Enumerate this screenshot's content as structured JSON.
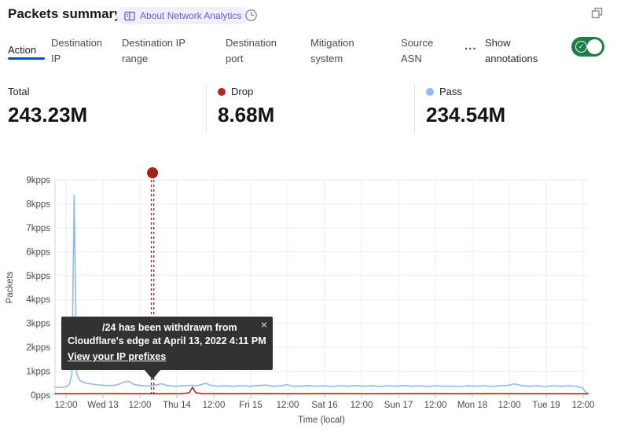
{
  "header": {
    "title": "Packets summary",
    "about_badge": "About Network Analytics"
  },
  "icons": {
    "close": "×",
    "check": "✓",
    "more": "..."
  },
  "tabs": {
    "items": [
      {
        "label": "Action",
        "active": true
      },
      {
        "label": "Destination IP",
        "active": false
      },
      {
        "label": "Destination IP range",
        "active": false
      },
      {
        "label": "Destination port",
        "active": false
      },
      {
        "label": "Mitigation system",
        "active": false
      },
      {
        "label": "Source ASN",
        "active": false
      }
    ],
    "annotations_label": "Show annotations",
    "toggle_on": true,
    "toggle_color": "#1e7d45"
  },
  "stats": [
    {
      "label": "Total",
      "value": "243.23M",
      "color": null
    },
    {
      "label": "Drop",
      "value": "8.68M",
      "color": "#b3261c"
    },
    {
      "label": "Pass",
      "value": "234.54M",
      "color": "#92b9f0"
    }
  ],
  "tooltip": {
    "message": "/24 has been withdrawn from Cloudflare's edge at April 13, 2022 4:11 PM",
    "link": "View your IP prefixes"
  },
  "chart_data": {
    "type": "line",
    "xlabel": "Time (local)",
    "ylabel": "Packets",
    "unit": "kpps",
    "ylim": [
      0,
      9
    ],
    "grid": true,
    "y_ticks": [
      "0pps",
      "1kpps",
      "2kpps",
      "3kpps",
      "4kpps",
      "5kpps",
      "6kpps",
      "7kpps",
      "8kpps",
      "9kpps"
    ],
    "x_ticks": [
      "12:00",
      "Wed 13",
      "12:00",
      "Thu 14",
      "12:00",
      "Fri 15",
      "12:00",
      "Sat 16",
      "12:00",
      "Sun 17",
      "12:00",
      "Mon 18",
      "12:00",
      "Tue 19",
      "12:00"
    ],
    "series": [
      {
        "name": "Pass",
        "color": "#92b9f0",
        "points": [
          [
            0,
            0.32
          ],
          [
            0.01,
            0.33
          ],
          [
            0.02,
            0.34
          ],
          [
            0.027,
            0.45
          ],
          [
            0.0315,
            0.9
          ],
          [
            0.036,
            8.38
          ],
          [
            0.0405,
            0.9
          ],
          [
            0.046,
            0.62
          ],
          [
            0.055,
            0.52
          ],
          [
            0.07,
            0.46
          ],
          [
            0.085,
            0.42
          ],
          [
            0.1,
            0.4
          ],
          [
            0.115,
            0.42
          ],
          [
            0.13,
            0.55
          ],
          [
            0.138,
            0.58
          ],
          [
            0.148,
            0.45
          ],
          [
            0.16,
            0.4
          ],
          [
            0.175,
            0.38
          ],
          [
            0.19,
            0.42
          ],
          [
            0.2,
            0.48
          ],
          [
            0.21,
            0.4
          ],
          [
            0.225,
            0.37
          ],
          [
            0.24,
            0.39
          ],
          [
            0.255,
            0.41
          ],
          [
            0.268,
            0.4
          ],
          [
            0.283,
            0.5
          ],
          [
            0.292,
            0.41
          ],
          [
            0.305,
            0.37
          ],
          [
            0.32,
            0.39
          ],
          [
            0.335,
            0.37
          ],
          [
            0.35,
            0.4
          ],
          [
            0.365,
            0.37
          ],
          [
            0.38,
            0.4
          ],
          [
            0.395,
            0.42
          ],
          [
            0.41,
            0.37
          ],
          [
            0.425,
            0.39
          ],
          [
            0.435,
            0.44
          ],
          [
            0.445,
            0.38
          ],
          [
            0.46,
            0.37
          ],
          [
            0.475,
            0.4
          ],
          [
            0.49,
            0.37
          ],
          [
            0.505,
            0.39
          ],
          [
            0.52,
            0.36
          ],
          [
            0.535,
            0.39
          ],
          [
            0.55,
            0.37
          ],
          [
            0.565,
            0.4
          ],
          [
            0.58,
            0.37
          ],
          [
            0.595,
            0.39
          ],
          [
            0.61,
            0.36
          ],
          [
            0.625,
            0.39
          ],
          [
            0.64,
            0.37
          ],
          [
            0.655,
            0.4
          ],
          [
            0.67,
            0.37
          ],
          [
            0.685,
            0.39
          ],
          [
            0.7,
            0.36
          ],
          [
            0.715,
            0.39
          ],
          [
            0.73,
            0.37
          ],
          [
            0.745,
            0.38
          ],
          [
            0.76,
            0.36
          ],
          [
            0.775,
            0.39
          ],
          [
            0.79,
            0.37
          ],
          [
            0.805,
            0.39
          ],
          [
            0.82,
            0.36
          ],
          [
            0.835,
            0.39
          ],
          [
            0.85,
            0.41
          ],
          [
            0.862,
            0.47
          ],
          [
            0.875,
            0.4
          ],
          [
            0.89,
            0.37
          ],
          [
            0.905,
            0.39
          ],
          [
            0.92,
            0.36
          ],
          [
            0.935,
            0.39
          ],
          [
            0.95,
            0.37
          ],
          [
            0.965,
            0.39
          ],
          [
            0.98,
            0.36
          ],
          [
            0.99,
            0.3
          ],
          [
            0.997,
            0.1
          ],
          [
            1,
            0.08
          ]
        ]
      },
      {
        "name": "Drop",
        "color": "#b3261c",
        "points": [
          [
            0,
            0.06
          ],
          [
            0.05,
            0.06
          ],
          [
            0.1,
            0.07
          ],
          [
            0.15,
            0.06
          ],
          [
            0.2,
            0.06
          ],
          [
            0.24,
            0.07
          ],
          [
            0.252,
            0.1
          ],
          [
            0.258,
            0.33
          ],
          [
            0.264,
            0.1
          ],
          [
            0.275,
            0.07
          ],
          [
            0.32,
            0.06
          ],
          [
            0.38,
            0.07
          ],
          [
            0.45,
            0.06
          ],
          [
            0.52,
            0.07
          ],
          [
            0.6,
            0.06
          ],
          [
            0.68,
            0.07
          ],
          [
            0.75,
            0.06
          ],
          [
            0.83,
            0.07
          ],
          [
            0.9,
            0.06
          ],
          [
            0.96,
            0.06
          ],
          [
            1,
            0.06
          ]
        ]
      }
    ],
    "annotation": {
      "x_fraction": 0.183,
      "color": "#a1221b",
      "peak_value_kpps": 8.38
    }
  }
}
